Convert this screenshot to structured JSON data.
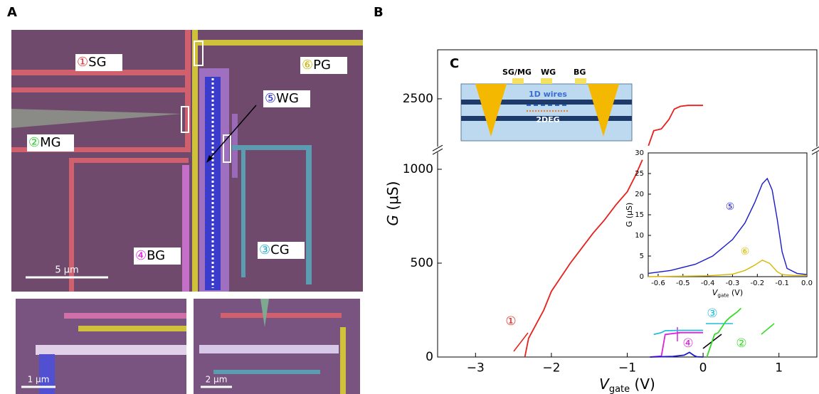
{
  "panels": {
    "a": "A",
    "b": "B",
    "c": "C"
  },
  "gate_labels": [
    {
      "num": "①",
      "name": "SG",
      "color": "#e8303a"
    },
    {
      "num": "②",
      "name": "MG",
      "color": "#33cc33"
    },
    {
      "num": "③",
      "name": "CG",
      "color": "#22aacc"
    },
    {
      "num": "④",
      "name": "BG",
      "color": "#dd22dd"
    },
    {
      "num": "⑤",
      "name": "WG",
      "color": "#2222cc"
    },
    {
      "num": "⑥",
      "name": "PG",
      "color": "#c8b400"
    }
  ],
  "scale_bars": [
    "5 μm",
    "1 μm",
    "2 μm"
  ],
  "schematic": {
    "gates": [
      "SG/MG",
      "WG",
      "BG"
    ],
    "wires": "1D wires",
    "layer": "2DEG"
  },
  "chart_data": [
    {
      "type": "line",
      "xlabel": {
        "main": "V",
        "sub": "gate",
        "unit": " (V)"
      },
      "ylabel": {
        "main": "G",
        "unit": " (μS)"
      },
      "xlim": [
        -3.5,
        1.5
      ],
      "ylim": [
        0,
        2760
      ],
      "ybreak": [
        1090,
        2245
      ],
      "xticks": [
        {
          "value": -3,
          "label": "−3"
        },
        {
          "value": -2,
          "label": "−2"
        },
        {
          "value": -1,
          "label": "−1"
        },
        0,
        1
      ],
      "yticks": [
        0,
        500,
        1000,
        2500
      ],
      "annotations": [
        "①",
        "②",
        "③",
        "④"
      ],
      "series": [
        {
          "color": "#e8201c",
          "x": [
            -2.35,
            -2.3,
            -2.22,
            -2.1,
            -2.0,
            -1.9,
            -1.75,
            -1.6,
            -1.45,
            -1.3,
            -1.15,
            -1.0,
            -0.9,
            -0.8,
            -0.78,
            -0.72,
            -0.65,
            -0.55,
            -0.45,
            -0.38,
            -0.3,
            -0.2,
            0.0
          ],
          "values": [
            0,
            100,
            160,
            250,
            350,
            410,
            500,
            580,
            660,
            730,
            810,
            880,
            960,
            1050,
            null,
            2250,
            2330,
            2340,
            2390,
            2445,
            2460,
            2465,
            2465
          ]
        },
        {
          "color": "#33dd22",
          "x": [
            0.05,
            0.1,
            0.15,
            0.2,
            0.3,
            0.35,
            0.45,
            0.5
          ],
          "values": [
            0,
            60,
            120,
            130,
            190,
            210,
            240,
            260
          ]
        },
        {
          "color": "#22bbdd",
          "x": [
            -0.65,
            -0.55,
            -0.5,
            -0.3,
            0.0
          ],
          "values": [
            120,
            130,
            140,
            142,
            142
          ]
        },
        {
          "color": "#dd22dd",
          "x": [
            -0.7,
            -0.55,
            -0.5,
            -0.3,
            0.0
          ],
          "values": [
            0,
            5,
            120,
            130,
            130
          ]
        },
        {
          "color": "#1a1acc",
          "x": [
            -0.7,
            -0.4,
            -0.25,
            -0.18,
            -0.12,
            -0.08,
            0.0
          ],
          "values": [
            0,
            3,
            10,
            25,
            8,
            1,
            0
          ]
        }
      ]
    },
    {
      "type": "line",
      "xlabel": {
        "main": "V",
        "sub": "gate",
        "unit": " (V)"
      },
      "ylabel": "G (μS)",
      "xlim": [
        -0.64,
        0
      ],
      "ylim": [
        0,
        30
      ],
      "xticks": [
        -0.6,
        -0.5,
        -0.4,
        -0.3,
        -0.2,
        -0.1,
        {
          "value": 0,
          "label": "0.0"
        }
      ],
      "yticks": [
        0,
        5,
        10,
        15,
        20,
        25,
        30
      ],
      "annotations": [
        "⑤",
        "⑥"
      ],
      "series": [
        {
          "color": "#1a1acc",
          "x": [
            -0.64,
            -0.55,
            -0.45,
            -0.38,
            -0.3,
            -0.25,
            -0.21,
            -0.18,
            -0.16,
            -0.14,
            -0.12,
            -0.1,
            -0.08,
            -0.04,
            0.0
          ],
          "values": [
            0.8,
            1.5,
            3,
            5,
            9,
            13,
            18,
            22.5,
            23.8,
            21,
            14,
            6,
            2,
            0.8,
            0.5
          ]
        },
        {
          "color": "#d4b800",
          "x": [
            -0.64,
            -0.4,
            -0.3,
            -0.25,
            -0.21,
            -0.18,
            -0.15,
            -0.12,
            -0.1,
            -0.05,
            0.0
          ],
          "values": [
            0,
            0.2,
            0.6,
            1.5,
            2.8,
            4,
            3.2,
            1.2,
            0.5,
            0.3,
            0.3
          ]
        }
      ]
    }
  ]
}
